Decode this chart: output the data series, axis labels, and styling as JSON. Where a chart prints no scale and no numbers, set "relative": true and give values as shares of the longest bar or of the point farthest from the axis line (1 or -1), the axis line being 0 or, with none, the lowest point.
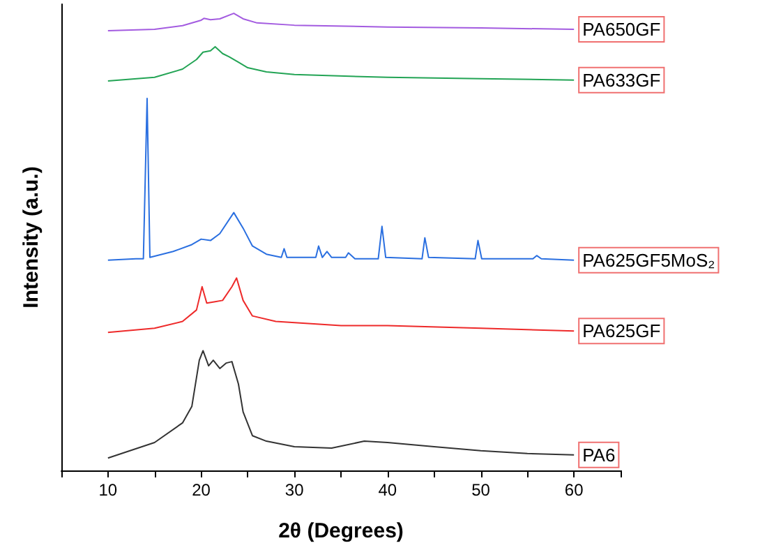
{
  "chart_data": {
    "type": "line",
    "relative": true,
    "xlabel": "2θ (Degrees)",
    "ylabel": "Intensity (a.u.)",
    "xlim": [
      5,
      65
    ],
    "xticks": [
      {
        "value": 5,
        "label": null
      },
      10,
      {
        "value": 15,
        "label": null
      },
      20,
      {
        "value": 25,
        "label": null
      },
      30,
      {
        "value": 35,
        "label": null
      },
      40,
      {
        "value": 45,
        "label": null
      },
      50,
      {
        "value": 55,
        "label": null
      },
      60,
      {
        "value": 65,
        "label": null
      }
    ],
    "grid": false,
    "line_style": "solid",
    "marker": "none",
    "series": [
      {
        "name": "PA6",
        "color": "#333333",
        "x": [
          10,
          15,
          18,
          19,
          19.8,
          20.2,
          20.8,
          21.3,
          22,
          22.7,
          23.3,
          24,
          24.5,
          25.5,
          27,
          30,
          34,
          37.5,
          40,
          45,
          50,
          55,
          60
        ],
        "values": [
          0.027,
          0.061,
          0.104,
          0.14,
          0.241,
          0.262,
          0.229,
          0.241,
          0.223,
          0.235,
          0.238,
          0.189,
          0.128,
          0.076,
          0.064,
          0.052,
          0.049,
          0.064,
          0.061,
          0.052,
          0.043,
          0.037,
          0.034
        ]
      },
      {
        "name": "PA625GF",
        "color": "#ee2a2a",
        "x": [
          10,
          15,
          18,
          19.5,
          20.1,
          20.6,
          21.5,
          22.3,
          23.3,
          23.8,
          24.5,
          25.5,
          28,
          35,
          40,
          50,
          60
        ],
        "values": [
          0.302,
          0.311,
          0.326,
          0.351,
          0.402,
          0.366,
          0.369,
          0.372,
          0.402,
          0.421,
          0.372,
          0.338,
          0.326,
          0.317,
          0.317,
          0.311,
          0.305
        ]
      },
      {
        "name": "PA625GF5MoS₂",
        "color": "#2a6fe0",
        "x": [
          10,
          13,
          13.8,
          14.2,
          14.5,
          17,
          19,
          20,
          21,
          22,
          23.5,
          24.5,
          25.5,
          27,
          28.6,
          28.9,
          29.2,
          32.3,
          32.6,
          33,
          33.5,
          34,
          35.5,
          35.8,
          36.5,
          39.0,
          39.4,
          39.8,
          43.7,
          44,
          44.4,
          49.4,
          49.7,
          50.1,
          55.6,
          56,
          56.5,
          60
        ],
        "values": [
          0.46,
          0.463,
          0.463,
          0.814,
          0.466,
          0.479,
          0.494,
          0.506,
          0.503,
          0.518,
          0.564,
          0.53,
          0.491,
          0.473,
          0.466,
          0.485,
          0.466,
          0.466,
          0.491,
          0.466,
          0.479,
          0.466,
          0.466,
          0.476,
          0.463,
          0.463,
          0.534,
          0.466,
          0.463,
          0.509,
          0.466,
          0.463,
          0.503,
          0.463,
          0.463,
          0.47,
          0.463,
          0.46
        ]
      },
      {
        "name": "PA633GF",
        "color": "#23a455",
        "x": [
          10,
          15,
          18,
          19.5,
          20.2,
          21,
          21.5,
          22.3,
          23,
          24,
          25,
          27,
          30,
          40,
          50,
          60
        ],
        "values": [
          0.852,
          0.86,
          0.878,
          0.899,
          0.915,
          0.918,
          0.927,
          0.912,
          0.905,
          0.893,
          0.881,
          0.872,
          0.866,
          0.86,
          0.857,
          0.854
        ]
      },
      {
        "name": "PA650GF",
        "color": "#a35be0",
        "x": [
          10,
          15,
          18,
          20,
          20.3,
          21,
          22,
          23.5,
          24.5,
          26,
          30,
          40,
          50,
          60
        ],
        "values": [
          0.962,
          0.965,
          0.973,
          0.985,
          0.989,
          0.986,
          0.988,
          1,
          0.988,
          0.979,
          0.974,
          0.97,
          0.968,
          0.965
        ]
      }
    ]
  }
}
